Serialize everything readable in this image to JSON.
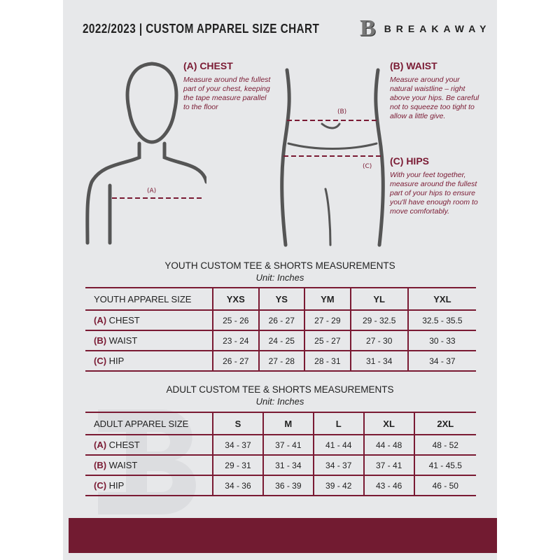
{
  "header": {
    "title": "2022/2023  |  CUSTOM APPAREL SIZE CHART",
    "brand": "BREAKAWAY",
    "logo_letter": "B"
  },
  "colors": {
    "accent": "#7a1a33",
    "background": "#e7e8ea",
    "band": "#721b31"
  },
  "diagram_labels": {
    "a": "(A)",
    "b": "(B)",
    "c": "(C)"
  },
  "sections": [
    {
      "title": "(A) CHEST",
      "text": "Measure around the fullest part of your chest, keeping the tape measure parallel to the floor"
    },
    {
      "title": "(B) WAIST",
      "text": "Measure around your natural waistline – right above your hips. Be careful not to squeeze too tight to allow a little give."
    },
    {
      "title": "(C) HIPS",
      "text": "With your feet together, measure around the fullest part of your hips to ensure you'll have enough room to move comfortably."
    }
  ],
  "youth": {
    "title": "YOUTH CUSTOM TEE & SHORTS MEASUREMENTS",
    "unit": "Unit: Inches",
    "header": "YOUTH APPAREL SIZE",
    "sizes": [
      "YXS",
      "YS",
      "YM",
      "YL",
      "YXL"
    ],
    "rows": [
      {
        "code": "(A)",
        "label": "CHEST",
        "values": [
          "25 - 26",
          "26 - 27",
          "27 - 29",
          "29 - 32.5",
          "32.5 - 35.5"
        ]
      },
      {
        "code": "(B)",
        "label": "WAIST",
        "values": [
          "23 - 24",
          "24 - 25",
          "25 - 27",
          "27 - 30",
          "30 - 33"
        ]
      },
      {
        "code": "(C)",
        "label": "HIP",
        "values": [
          "26 - 27",
          "27 - 28",
          "28 - 31",
          "31 - 34",
          "34 - 37"
        ]
      }
    ]
  },
  "adult": {
    "title": "ADULT CUSTOM TEE & SHORTS MEASUREMENTS",
    "unit": "Unit: Inches",
    "header": "ADULT APPAREL SIZE",
    "sizes": [
      "S",
      "M",
      "L",
      "XL",
      "2XL"
    ],
    "rows": [
      {
        "code": "(A)",
        "label": "CHEST",
        "values": [
          "34 - 37",
          "37 - 41",
          "41 - 44",
          "44 - 48",
          "48 - 52"
        ]
      },
      {
        "code": "(B)",
        "label": "WAIST",
        "values": [
          "29 - 31",
          "31 - 34",
          "34 - 37",
          "37 - 41",
          "41 - 45.5"
        ]
      },
      {
        "code": "(C)",
        "label": "HIP",
        "values": [
          "34 - 36",
          "36 - 39",
          "39 - 42",
          "43 - 46",
          "46 - 50"
        ]
      }
    ]
  }
}
